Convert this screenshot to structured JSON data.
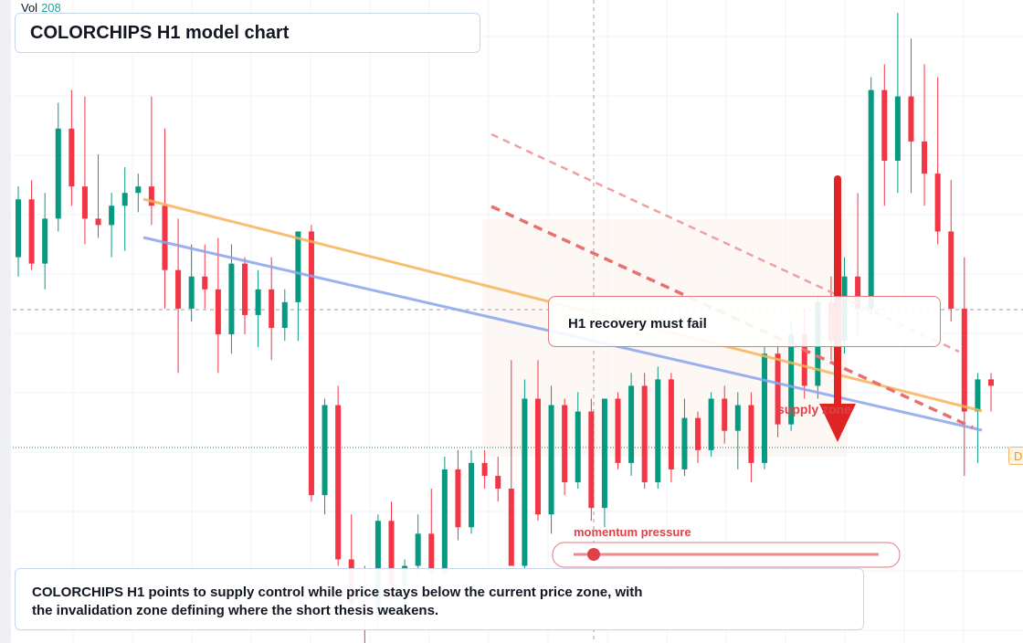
{
  "chart_data": {
    "type": "candlestick",
    "title": "COLORCHIPS H1 model chart",
    "volume_label": "Vol",
    "volume_value": "208",
    "annotations": [
      "H1 recovery must fail",
      "supply zone",
      "momentum pressure",
      "D"
    ],
    "summary": "COLORCHIPS H1 points to supply control while price stays below the current price zone, with the invalidation zone defining where the short thesis weakens.",
    "ylim": [
      0,
      100
    ],
    "colors": {
      "up": "#089981",
      "down": "#f23645"
    },
    "ohlc": [
      [
        60,
        71,
        57,
        69
      ],
      [
        69,
        72,
        58,
        59
      ],
      [
        59,
        70,
        55,
        66
      ],
      [
        66,
        84,
        64,
        80
      ],
      [
        80,
        86,
        68,
        71
      ],
      [
        71,
        85,
        62,
        66
      ],
      [
        66,
        76,
        63,
        65
      ],
      [
        65,
        70,
        60,
        68
      ],
      [
        68,
        74,
        61,
        70
      ],
      [
        70,
        73,
        67,
        71
      ],
      [
        71,
        85,
        65,
        68
      ],
      [
        68,
        80,
        52,
        58
      ],
      [
        58,
        66,
        42,
        52
      ],
      [
        52,
        62,
        50,
        57
      ],
      [
        57,
        62,
        52,
        55
      ],
      [
        55,
        63,
        42,
        48
      ],
      [
        48,
        62,
        45,
        59
      ],
      [
        59,
        60,
        48,
        51
      ],
      [
        51,
        58,
        46,
        55
      ],
      [
        55,
        60,
        44,
        49
      ],
      [
        49,
        55,
        47,
        53
      ],
      [
        53,
        64,
        47,
        64
      ],
      [
        64,
        65,
        22,
        23
      ],
      [
        23,
        38,
        20,
        37
      ],
      [
        37,
        40,
        12,
        13
      ],
      [
        13,
        20,
        3,
        6
      ],
      [
        6,
        12,
        0,
        4
      ],
      [
        4,
        20,
        2,
        19
      ],
      [
        19,
        22,
        6,
        9
      ],
      [
        9,
        13,
        4,
        12
      ],
      [
        12,
        20,
        10,
        17
      ],
      [
        17,
        24,
        8,
        11
      ],
      [
        11,
        29,
        10,
        27
      ],
      [
        27,
        30,
        16,
        18
      ],
      [
        18,
        30,
        17,
        28
      ],
      [
        28,
        30,
        24,
        26
      ],
      [
        26,
        29,
        22,
        24
      ],
      [
        24,
        44,
        12,
        12
      ],
      [
        12,
        41,
        11,
        38
      ],
      [
        38,
        44,
        19,
        20
      ],
      [
        20,
        40,
        17,
        37
      ],
      [
        37,
        38,
        23,
        25
      ],
      [
        25,
        39,
        24,
        36
      ],
      [
        36,
        38,
        19,
        21
      ],
      [
        21,
        38,
        18,
        38
      ],
      [
        38,
        39,
        27,
        28
      ],
      [
        28,
        42,
        26,
        40
      ],
      [
        40,
        42,
        24,
        25
      ],
      [
        25,
        43,
        24,
        41
      ],
      [
        41,
        42,
        25,
        27
      ],
      [
        27,
        38,
        26,
        35
      ],
      [
        35,
        36,
        28,
        30
      ],
      [
        30,
        39,
        29,
        38
      ],
      [
        38,
        40,
        31,
        33
      ],
      [
        33,
        39,
        27,
        37
      ],
      [
        37,
        39,
        25,
        28
      ],
      [
        28,
        46,
        27,
        45
      ],
      [
        45,
        47,
        32,
        34
      ],
      [
        34,
        50,
        33,
        48
      ],
      [
        48,
        52,
        38,
        40
      ],
      [
        40,
        54,
        38,
        53
      ],
      [
        53,
        57,
        44,
        47
      ],
      [
        47,
        60,
        45,
        57
      ],
      [
        57,
        70,
        48,
        52
      ],
      [
        52,
        88,
        51,
        86
      ],
      [
        86,
        90,
        68,
        75
      ],
      [
        75,
        98,
        70,
        85
      ],
      [
        85,
        94,
        70,
        78
      ],
      [
        78,
        90,
        68,
        73
      ],
      [
        73,
        88,
        62,
        64
      ],
      [
        64,
        72,
        50,
        52
      ],
      [
        52,
        60,
        26,
        36
      ],
      [
        36,
        42,
        28,
        41
      ],
      [
        41,
        42,
        36,
        40
      ]
    ]
  }
}
